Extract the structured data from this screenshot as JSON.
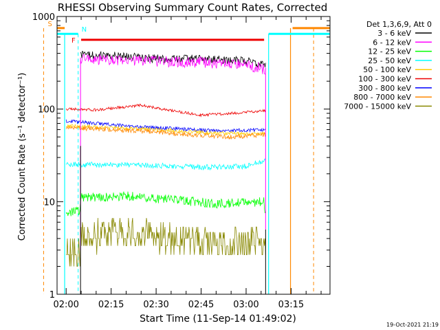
{
  "chart_data": {
    "type": "line",
    "title": "RHESSI Observing Summary Count Rates, Corrected",
    "xlabel": "Start Time (11-Sep-14 01:49:02)",
    "ylabel": "Corrected Count Rate (s⁻¹ detector⁻¹)",
    "yscale": "log",
    "ylim": [
      1,
      1000
    ],
    "xlim_minutes": [
      -3.03,
      87.97
    ],
    "xtick_labels": [
      "02:00",
      "02:15",
      "02:30",
      "02:45",
      "03:00",
      "03:15"
    ],
    "xtick_minutes": [
      0,
      15,
      30,
      45,
      60,
      75
    ],
    "ytick_labels": [
      "1",
      "10",
      "100",
      "1000"
    ],
    "ytick_values": [
      1,
      10,
      100,
      1000
    ],
    "timestamp": "19-Oct-2021 21:19",
    "legend": {
      "header": "Det 1,3,6,9, Att 0",
      "position": "right",
      "entries": [
        {
          "label": "3 - 6 keV",
          "color": "#000000"
        },
        {
          "label": "6 - 12 keV",
          "color": "#ff00ff"
        },
        {
          "label": "12 - 25 keV",
          "color": "#00ff00"
        },
        {
          "label": "25 - 50 keV",
          "color": "#00ffff"
        },
        {
          "label": "50 - 100 keV",
          "color": "#ffcc00"
        },
        {
          "label": "100 - 300 keV",
          "color": "#ee0000"
        },
        {
          "label": "300 - 800 keV",
          "color": "#0000ff"
        },
        {
          "label": "800 - 7000 keV",
          "color": "#ff8800"
        },
        {
          "label": "7000 - 15000 keV",
          "color": "#888800"
        }
      ]
    },
    "series": [
      {
        "name": "3 - 6 keV",
        "color": "#000000",
        "noise": 0.045,
        "x": [
          4.8,
          15,
          30,
          45,
          60,
          66.5
        ],
        "y": [
          380,
          380,
          350,
          350,
          330,
          300
        ]
      },
      {
        "name": "6 - 12 keV",
        "color": "#ff00ff",
        "noise": 0.06,
        "x": [
          4.8,
          15,
          30,
          45,
          60,
          66.5
        ],
        "y": [
          350,
          340,
          330,
          320,
          300,
          270
        ]
      },
      {
        "name": "100 - 300 keV",
        "color": "#ee0000",
        "noise": 0.015,
        "x": [
          0,
          10,
          25,
          35,
          45,
          55,
          66.5
        ],
        "y": [
          100,
          98,
          110,
          96,
          86,
          90,
          96
        ]
      },
      {
        "name": "300 - 800 keV",
        "color": "#0000ff",
        "noise": 0.02,
        "x": [
          0,
          10,
          20,
          35,
          50,
          66.5
        ],
        "y": [
          74,
          70,
          66,
          62,
          58,
          60
        ]
      },
      {
        "name": "50 - 100 keV",
        "color": "#ffcc00",
        "noise": 0.02,
        "x": [
          0,
          15,
          35,
          50,
          66.5
        ],
        "y": [
          66,
          63,
          59,
          55,
          54
        ]
      },
      {
        "name": "800 - 7000 keV",
        "color": "#ff8800",
        "noise": 0.025,
        "x": [
          0,
          15,
          30,
          40,
          55,
          66.5
        ],
        "y": [
          63,
          60,
          57,
          53,
          50,
          53
        ]
      },
      {
        "name": "25 - 50 keV",
        "color": "#00ffff",
        "noise": 0.03,
        "x": [
          0,
          15,
          30,
          45,
          60,
          66.5
        ],
        "y": [
          25,
          25,
          24.5,
          23.5,
          24,
          28
        ]
      },
      {
        "name": "12 - 25 keV",
        "color": "#00ff00",
        "noise": 0.05,
        "x": [
          0,
          4.5,
          5,
          20,
          35,
          50,
          66,
          66.5
        ],
        "y": [
          7.5,
          8,
          11,
          11.5,
          10.5,
          9.5,
          10,
          7
        ]
      },
      {
        "name": "7000 - 15000 keV",
        "color": "#888800",
        "noise": 0.17,
        "x": [
          0,
          4.5,
          5,
          15,
          30,
          50,
          66.5
        ],
        "y": [
          2.7,
          2.7,
          3.9,
          4.7,
          4.3,
          3.5,
          3.9
        ]
      }
    ],
    "spikes": [
      {
        "color": "#ff00ff",
        "x": 4.8,
        "from": 3,
        "to": 360
      },
      {
        "color": "#000000",
        "x": 4.8,
        "from": 1,
        "to": 40
      },
      {
        "color": "#ff00ff",
        "x": 66.5,
        "from": 5,
        "to": 280
      },
      {
        "color": "#000000",
        "x": 66.5,
        "from": 1,
        "to": 5
      }
    ],
    "flags": [
      {
        "label": "S",
        "color": "#ff8800",
        "y": 750,
        "segments": [
          [
            -3.03,
            -0.5
          ],
          [
            75.5,
            87.97
          ]
        ],
        "dashed_x": [
          -7.5,
          82.5
        ],
        "edge_x": [
          74.8
        ]
      },
      {
        "label": "N",
        "color": "#00ffff",
        "y": 650,
        "segments": [
          [
            -3.03,
            4.0
          ],
          [
            67.5,
            87.97
          ]
        ],
        "dashed_x": [
          4.0
        ],
        "edge_x": [
          -0.5,
          67.5
        ]
      },
      {
        "label": "F",
        "color": "#ee0000",
        "y": 560,
        "segments": [
          [
            5.0,
            66.0
          ]
        ],
        "dashed_x": [],
        "edge_x": []
      }
    ]
  }
}
